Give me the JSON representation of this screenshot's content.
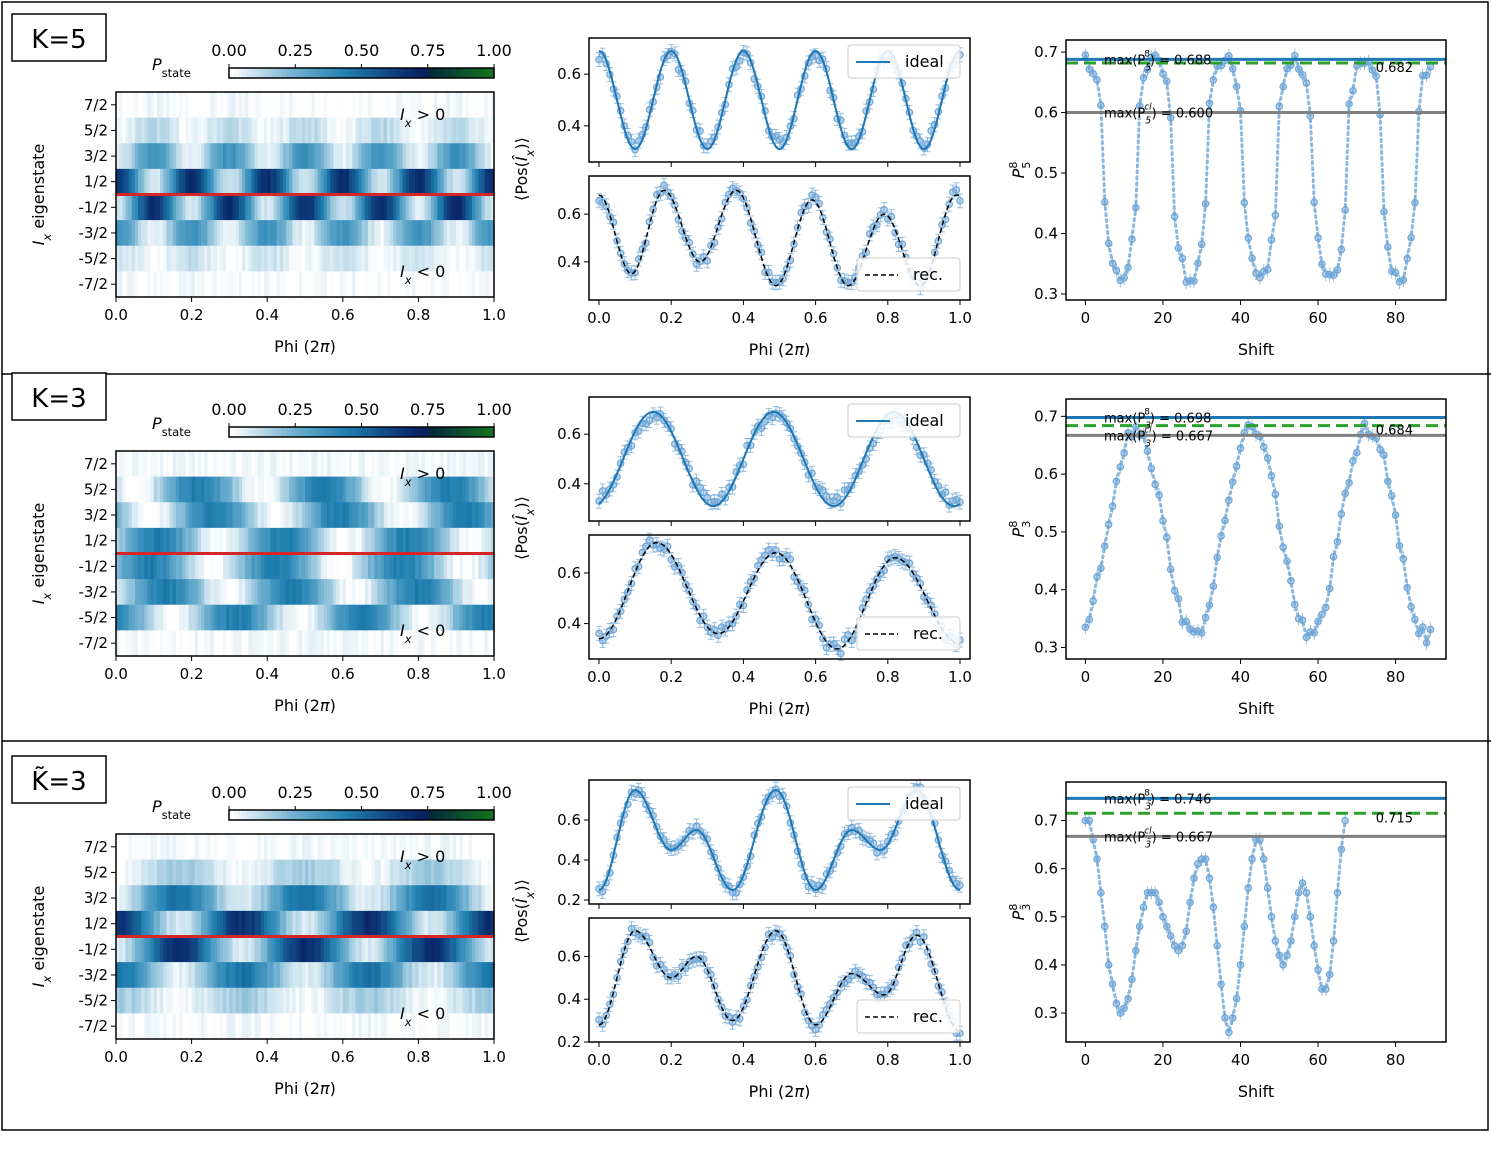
{
  "common": {
    "phi_xlabel": "Phi (2π)",
    "phi_ticks": [
      "0.0",
      "0.2",
      "0.4",
      "0.6",
      "0.8",
      "1.0"
    ],
    "heat_ylabel": "I",
    "heat_ylabel_sub": "x",
    "heat_ylabel_rest": " eigenstate",
    "heat_yticks": [
      "7/2",
      "5/2",
      "3/2",
      "1/2",
      "-1/2",
      "-3/2",
      "-5/2",
      "-7/2"
    ],
    "colorbar_label": "P",
    "colorbar_label_sub": "state",
    "colorbar_ticks": [
      "0.00",
      "0.25",
      "0.50",
      "0.75",
      "1.00"
    ],
    "ann_pos": "I",
    "ann_pos_sub": "x",
    "ann_pos_rest": " > 0",
    "ann_neg": "I",
    "ann_neg_sub": "x",
    "ann_neg_rest": " < 0",
    "pos_ylabel": "⟨Pos(Î",
    "pos_ylabel_sub": "x",
    "pos_ylabel_end": ")⟩",
    "legend_ideal": "ideal",
    "legend_rec": "rec.",
    "shift_xlabel": "Shift",
    "shift_ticks": [
      "0",
      "20",
      "40",
      "60",
      "80"
    ],
    "colors": {
      "ideal": "#1f77b4",
      "marker": "#6fa6d6",
      "green": "#2ca02c",
      "gray": "#808080",
      "red": "#d62728",
      "cmap": [
        "#ffffff",
        "#6fb0d0",
        "#1f7fb0",
        "#0a2e70",
        "#0a6e2a"
      ]
    }
  },
  "panels": [
    {
      "label": "K=5",
      "P_label_K": "5",
      "max_q_label": "max(P",
      "max_q_sub": "5",
      "max_q_sup": "8",
      "max_q_value": ") = 0.688",
      "max_cl_label": "max(P",
      "max_cl_sub": "5",
      "max_cl_sup": "cl",
      "max_cl_value": ") = 0.600",
      "green_label": "0.682"
    },
    {
      "label": "K=3",
      "P_label_K": "3",
      "max_q_label": "max(P",
      "max_q_sub": "3",
      "max_q_sup": "8",
      "max_q_value": ") = 0.698",
      "max_cl_label": "max(P",
      "max_cl_sub": "3",
      "max_cl_sup": "cl",
      "max_cl_value": ") = 0.667",
      "green_label": "0.684"
    },
    {
      "label": "K̃=3",
      "P_label_K": "3̃",
      "max_q_label": "max(P",
      "max_q_sub": "3̃",
      "max_q_sup": "8",
      "max_q_value": ") = 0.746",
      "max_cl_label": "max(P",
      "max_cl_sub": "3̃",
      "max_cl_sup": "cl",
      "max_cl_value": ") = 0.667",
      "green_label": "0.715"
    }
  ],
  "chart_data": [
    {
      "type": "heatmap",
      "panel": "K=5",
      "xlabel": "Phi (2π)",
      "ylabel": "I_x eigenstate",
      "xlim": [
        0,
        1
      ],
      "rows": [
        "7/2",
        "5/2",
        "3/2",
        "1/2",
        "-1/2",
        "-3/2",
        "-5/2",
        "-7/2"
      ],
      "row_amplitude": [
        0.02,
        0.15,
        0.45,
        0.85,
        0.85,
        0.45,
        0.12,
        0.02
      ],
      "oscillations": 5,
      "colorbar": [
        0,
        1
      ]
    },
    {
      "type": "line",
      "panel": "K=5 top",
      "xlim": [
        0,
        1
      ],
      "ylim": [
        0.26,
        0.74
      ],
      "yticks": [
        0.4,
        0.6
      ],
      "series": [
        {
          "name": "ideal",
          "model": "cos",
          "mean": 0.5,
          "amp": 0.19,
          "freq": 5,
          "phase": 0
        },
        {
          "name": "data",
          "model": "points",
          "count": 101
        }
      ]
    },
    {
      "type": "line",
      "panel": "K=5 bottom",
      "xlim": [
        0,
        1
      ],
      "ylim": [
        0.24,
        0.76
      ],
      "yticks": [
        0.4,
        0.6
      ],
      "series": [
        {
          "name": "rec.",
          "x": [
            0,
            0.09,
            0.18,
            0.28,
            0.38,
            0.49,
            0.59,
            0.69,
            0.79,
            0.89,
            0.99
          ],
          "y": [
            0.68,
            0.35,
            0.7,
            0.4,
            0.7,
            0.3,
            0.66,
            0.3,
            0.6,
            0.3,
            0.68
          ]
        },
        {
          "name": "data",
          "model": "points",
          "count": 101
        }
      ]
    },
    {
      "type": "scatter",
      "panel": "K=5 right",
      "xlabel": "Shift",
      "ylabel": "P_5^8",
      "xlim": [
        -5,
        93
      ],
      "ylim": [
        0.29,
        0.72
      ],
      "yticks": [
        0.3,
        0.4,
        0.5,
        0.6,
        0.7
      ],
      "hlines": {
        "quantum": 0.688,
        "green": 0.682,
        "classical": 0.6
      },
      "period": 18,
      "min": 0.32,
      "max": 0.688
    },
    {
      "type": "heatmap",
      "panel": "K=3",
      "rows": [
        "7/2",
        "5/2",
        "3/2",
        "1/2",
        "-1/2",
        "-3/2",
        "-5/2",
        "-7/2"
      ],
      "row_amplitude": [
        0.02,
        0.55,
        0.55,
        0.55,
        0.55,
        0.55,
        0.55,
        0.02
      ],
      "oscillations": 3,
      "colorbar": [
        0,
        1
      ]
    },
    {
      "type": "line",
      "panel": "K=3 top",
      "xlim": [
        0,
        1
      ],
      "ylim": [
        0.25,
        0.75
      ],
      "yticks": [
        0.4,
        0.6
      ],
      "series": [
        {
          "name": "ideal",
          "model": "cos",
          "mean": 0.5,
          "amp": 0.19,
          "freq": 3,
          "phase": 0.15
        },
        {
          "name": "data",
          "model": "points",
          "count": 101
        }
      ]
    },
    {
      "type": "line",
      "panel": "K=3 bottom",
      "xlim": [
        0,
        1
      ],
      "ylim": [
        0.26,
        0.75
      ],
      "yticks": [
        0.4,
        0.6
      ],
      "series": [
        {
          "name": "rec.",
          "x": [
            0,
            0.16,
            0.33,
            0.49,
            0.66,
            0.82,
            1.0
          ],
          "y": [
            0.34,
            0.72,
            0.36,
            0.68,
            0.3,
            0.66,
            0.32
          ]
        },
        {
          "name": "data",
          "model": "points",
          "count": 101
        }
      ]
    },
    {
      "type": "scatter",
      "panel": "K=3 right",
      "xlabel": "Shift",
      "ylabel": "P_3^8",
      "xlim": [
        -5,
        93
      ],
      "ylim": [
        0.28,
        0.73
      ],
      "yticks": [
        0.3,
        0.4,
        0.5,
        0.6,
        0.7
      ],
      "hlines": {
        "quantum": 0.698,
        "green": 0.684,
        "classical": 0.667
      },
      "period": 30,
      "min": 0.32,
      "max": 0.68
    },
    {
      "type": "heatmap",
      "panel": "K̃=3",
      "rows": [
        "7/2",
        "5/2",
        "3/2",
        "1/2",
        "-1/2",
        "-3/2",
        "-5/2",
        "-7/2"
      ],
      "row_amplitude": [
        0.02,
        0.2,
        0.6,
        0.85,
        0.85,
        0.6,
        0.2,
        0.02
      ],
      "oscillations": 3,
      "colorbar": [
        0,
        1
      ]
    },
    {
      "type": "line",
      "panel": "K̃=3 top",
      "xlim": [
        0,
        1
      ],
      "ylim": [
        0.18,
        0.8
      ],
      "yticks": [
        0.2,
        0.4,
        0.6
      ],
      "series": [
        {
          "name": "ideal",
          "x": [
            0,
            0.1,
            0.2,
            0.27,
            0.37,
            0.49,
            0.6,
            0.7,
            0.78,
            0.88,
            1.0
          ],
          "y": [
            0.25,
            0.75,
            0.45,
            0.55,
            0.25,
            0.75,
            0.25,
            0.55,
            0.45,
            0.75,
            0.25
          ]
        },
        {
          "name": "data",
          "model": "points",
          "count": 101
        }
      ]
    },
    {
      "type": "line",
      "panel": "K̃=3 bottom",
      "xlim": [
        0,
        1
      ],
      "ylim": [
        0.2,
        0.78
      ],
      "yticks": [
        0.2,
        0.4,
        0.6
      ],
      "series": [
        {
          "name": "rec.",
          "x": [
            0,
            0.1,
            0.2,
            0.27,
            0.37,
            0.49,
            0.6,
            0.7,
            0.79,
            0.88,
            1.0
          ],
          "y": [
            0.28,
            0.72,
            0.5,
            0.6,
            0.3,
            0.72,
            0.28,
            0.52,
            0.42,
            0.7,
            0.25
          ]
        },
        {
          "name": "data",
          "model": "points",
          "count": 101
        }
      ]
    },
    {
      "type": "scatter",
      "panel": "K̃=3 right",
      "xlabel": "Shift",
      "ylabel": "P_3̃^8",
      "xlim": [
        -5,
        93
      ],
      "ylim": [
        0.24,
        0.78
      ],
      "yticks": [
        0.3,
        0.4,
        0.5,
        0.6,
        0.7
      ],
      "hlines": {
        "quantum": 0.746,
        "green": 0.715,
        "classical": 0.667
      },
      "values": [
        0.7,
        0.7,
        0.66,
        0.62,
        0.55,
        0.48,
        0.4,
        0.36,
        0.32,
        0.3,
        0.31,
        0.33,
        0.37,
        0.43,
        0.48,
        0.52,
        0.55,
        0.55,
        0.55,
        0.53,
        0.5,
        0.48,
        0.46,
        0.44,
        0.43,
        0.44,
        0.47,
        0.53,
        0.58,
        0.61,
        0.62,
        0.62,
        0.58,
        0.52,
        0.44,
        0.36,
        0.29,
        0.26,
        0.29,
        0.33,
        0.4,
        0.48,
        0.56,
        0.62,
        0.66,
        0.66,
        0.62,
        0.56,
        0.5,
        0.45,
        0.42,
        0.4,
        0.42,
        0.45,
        0.5,
        0.55,
        0.57,
        0.55,
        0.5,
        0.44,
        0.39,
        0.35,
        0.35,
        0.38,
        0.45,
        0.55,
        0.64,
        0.7
      ]
    }
  ]
}
